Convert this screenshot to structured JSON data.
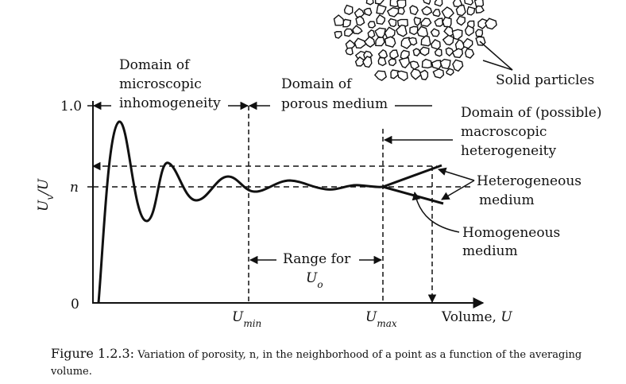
{
  "diagram": {
    "y_axis_label": "U_v/U",
    "y_top_tick": "1.0",
    "y_n_tick": "n",
    "y_zero_tick": "0",
    "x_umin": "U_min",
    "x_umax": "U_max",
    "x_axis_label": "Volume, U",
    "domain_micro": [
      "Domain of",
      "microscopic",
      "inhomogeneity"
    ],
    "domain_porous": [
      "Domain of",
      "porous medium"
    ],
    "domain_macro": [
      "Domain of (possible)",
      "macroscopic",
      "heterogeneity"
    ],
    "heterogeneous": [
      "Heterogeneous",
      "medium"
    ],
    "homogeneous": [
      "Homogeneous",
      "medium"
    ],
    "range_for": [
      "Range for",
      "U_o"
    ],
    "solid_particles": "Solid particles"
  },
  "caption": {
    "label": "Figure 1.2.3:",
    "text": "Variation of porosity, n, in the neighborhood of a point as a function of the averaging volume."
  },
  "colors": {
    "ink": "#111111",
    "background": "#ffffff"
  }
}
